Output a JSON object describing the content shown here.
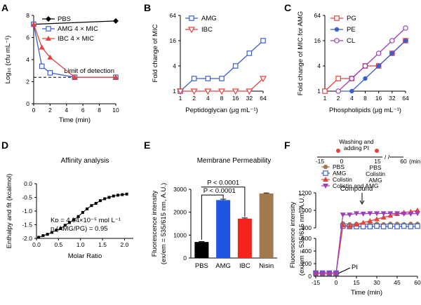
{
  "panels": {
    "A": "A",
    "B": "B",
    "C": "C",
    "D": "D",
    "E": "E",
    "F": "F"
  },
  "chart_data": [
    {
      "id": "A",
      "type": "line",
      "xlabel": "Time (min)",
      "ylabel": "Log₁₀ (cfu mL⁻¹)",
      "xlim": [
        0,
        10
      ],
      "ylim": [
        0,
        8
      ],
      "xticks": [
        "0",
        "2",
        "4",
        "6",
        "8",
        "10"
      ],
      "yticks": [
        "0",
        "2",
        "4",
        "6",
        "8"
      ],
      "series": [
        {
          "name": "PBS",
          "color": "#000000",
          "marker": "diamond",
          "x": [
            0,
            10
          ],
          "y": [
            7.2,
            7.5
          ]
        },
        {
          "name": "AMG 4 × MIC",
          "color": "#3a5fcd",
          "marker": "square",
          "x": [
            0,
            1,
            2,
            5,
            10
          ],
          "y": [
            7.2,
            3.4,
            2.8,
            2.4,
            2.4
          ]
        },
        {
          "name": "IBC 4 × MIC",
          "color": "#e8413c",
          "marker": "triangle",
          "x": [
            0,
            1,
            2,
            5,
            10
          ],
          "y": [
            7.2,
            5.1,
            4.2,
            2.4,
            2.4
          ]
        }
      ],
      "reference_line": {
        "y": 2.4,
        "label": "Limit of detection"
      }
    },
    {
      "id": "B",
      "type": "line",
      "xlabel": "Peptidoglycan (μg mL⁻¹)",
      "ylabel": "Fold change of MIC",
      "xticks": [
        "1",
        "2",
        "4",
        "8",
        "16",
        "32",
        "64"
      ],
      "yticks": [
        "1",
        "4",
        "16",
        "64"
      ],
      "series": [
        {
          "name": "AMG",
          "color": "#3a5fcd",
          "marker": "square",
          "x": [
            1,
            2,
            4,
            8,
            16,
            32,
            64
          ],
          "y": [
            1,
            2,
            2,
            2,
            4,
            8,
            16
          ]
        },
        {
          "name": "IBC",
          "color": "#e8413c",
          "marker": "triangle-down",
          "x": [
            1,
            2,
            4,
            8,
            16,
            32,
            64
          ],
          "y": [
            1,
            1,
            1,
            1,
            1,
            1,
            2
          ]
        }
      ]
    },
    {
      "id": "C",
      "type": "line",
      "xlabel": "Phospholipids (μg mL⁻¹)",
      "ylabel": "Fold change of MIC for AMG",
      "xticks": [
        "1",
        "2",
        "4",
        "8",
        "16",
        "32",
        "64"
      ],
      "yticks": [
        "1",
        "4",
        "16",
        "64"
      ],
      "series": [
        {
          "name": "PG",
          "color": "#e8413c",
          "marker": "square",
          "x": [
            1,
            2,
            4,
            8,
            16,
            32,
            64
          ],
          "y": [
            1,
            2,
            2,
            4,
            4,
            8,
            16
          ]
        },
        {
          "name": "PE",
          "color": "#3a5fcd",
          "marker": "circle",
          "x": [
            2,
            4,
            8,
            16,
            32,
            64
          ],
          "y": [
            1,
            1,
            2,
            4,
            8,
            16
          ]
        },
        {
          "name": "CL",
          "color": "#9b3dbd",
          "marker": "circle-open",
          "x": [
            2,
            4,
            8,
            16,
            32,
            64
          ],
          "y": [
            1,
            2,
            4,
            8,
            16,
            32
          ]
        }
      ]
    },
    {
      "id": "D",
      "type": "scatter",
      "title": "Affinity analysis",
      "xlabel": "Molar Ratio",
      "ylabel": "Enthalpy and fit (kcalmol)",
      "xlim": [
        0,
        2.2
      ],
      "ylim": [
        -2,
        0
      ],
      "xticks": [
        "0.0",
        "0.5",
        "1.0",
        "1.5",
        "2.0"
      ],
      "yticks": [
        "0.0",
        "-0.5",
        "-1.0",
        "-1.5",
        "-2.0"
      ],
      "x": [
        0.05,
        0.15,
        0.25,
        0.35,
        0.45,
        0.55,
        0.65,
        0.75,
        0.85,
        0.95,
        1.05,
        1.15,
        1.25,
        1.35,
        1.45,
        1.55,
        1.65,
        1.75,
        1.85,
        1.95,
        2.05
      ],
      "y": [
        -1.96,
        -1.9,
        -1.85,
        -1.78,
        -1.7,
        -1.64,
        -1.52,
        -1.42,
        -1.32,
        -1.2,
        -1.05,
        -0.92,
        -0.8,
        -0.72,
        -0.62,
        -0.55,
        -0.5,
        -0.45,
        -0.42,
        -0.4,
        -0.38
      ],
      "annotation": {
        "kd": "Kᴅ = 4.04×10⁻⁵ mol L⁻¹",
        "n": "n (AMG/PG) = 0.95"
      }
    },
    {
      "id": "E",
      "type": "bar",
      "title": "Membrane Permeability",
      "ylabel": "Fluorescence intensity",
      "ylabel2": "(ex/em = 535/615 nm, A.U.)",
      "ylim": [
        0,
        3000
      ],
      "yticks": [
        "0",
        "1000",
        "2000",
        "3000"
      ],
      "categories": [
        "PBS",
        "AMG",
        "IBC",
        "Nisin"
      ],
      "values": [
        700,
        2530,
        1720,
        2820
      ],
      "errors": [
        20,
        40,
        30,
        20
      ],
      "colors": [
        "#000000",
        "#1f55e0",
        "#f5231b",
        "#a07a4e"
      ],
      "significance": [
        "P < 0.0001",
        "P < 0.0001"
      ]
    },
    {
      "id": "F",
      "type": "line",
      "xlabel": "Time (min)",
      "ylabel": "Fluorescence intensity",
      "ylabel2": "(ex/em = 535/615 nm, A.U.)",
      "xticks": [
        "-15",
        "0",
        "15",
        "30",
        "45",
        "60"
      ],
      "yticks": [
        "0",
        "200",
        "400",
        "600",
        "800",
        "1000",
        "1200"
      ],
      "annotations": {
        "compound": "Compound",
        "pi": "PI"
      },
      "timeline": {
        "t1": "Washing and",
        "t2": "adding PI",
        "ticks": [
          "-15",
          "0",
          "15",
          "60"
        ],
        "unit": "(min)",
        "pbs": "PBS",
        "colistin": "Colistin",
        "amg": "AMG"
      },
      "series": [
        {
          "name": "PBS",
          "color": "#a07a4e",
          "marker": "circle",
          "x": [
            -15,
            -10,
            -5,
            0,
            5,
            10,
            15,
            20,
            25,
            30,
            35,
            40,
            45,
            50,
            55,
            60
          ],
          "y": [
            50,
            50,
            50,
            50,
            850,
            840,
            845,
            840,
            845,
            845,
            840,
            845,
            845,
            840,
            845,
            845
          ]
        },
        {
          "name": "AMG",
          "color": "#3a5fcd",
          "marker": "square-open",
          "x": [
            -15,
            -10,
            -5,
            0,
            5,
            10,
            15,
            20,
            25,
            30,
            35,
            40,
            45,
            50,
            55,
            60
          ],
          "y": [
            50,
            50,
            50,
            50,
            820,
            815,
            815,
            815,
            815,
            820,
            815,
            820,
            815,
            820,
            815,
            820
          ]
        },
        {
          "name": "Colistin",
          "color": "#e8413c",
          "marker": "triangle",
          "x": [
            -15,
            -10,
            -5,
            0,
            5,
            10,
            15,
            20,
            25,
            30,
            35,
            40,
            45,
            50,
            55,
            60
          ],
          "y": [
            50,
            50,
            50,
            50,
            830,
            820,
            840,
            860,
            880,
            900,
            920,
            940,
            960,
            975,
            985,
            1000
          ]
        },
        {
          "name": "Colistin and AMG",
          "color": "#9b3dbd",
          "marker": "triangle-down",
          "x": [
            -15,
            -10,
            -5,
            0,
            5,
            10,
            15,
            20,
            25,
            30,
            35,
            40,
            45,
            50,
            55,
            60
          ],
          "y": [
            50,
            50,
            50,
            50,
            950,
            950,
            965,
            960,
            965,
            965,
            965,
            965,
            965,
            960,
            960,
            965
          ]
        }
      ]
    }
  ]
}
